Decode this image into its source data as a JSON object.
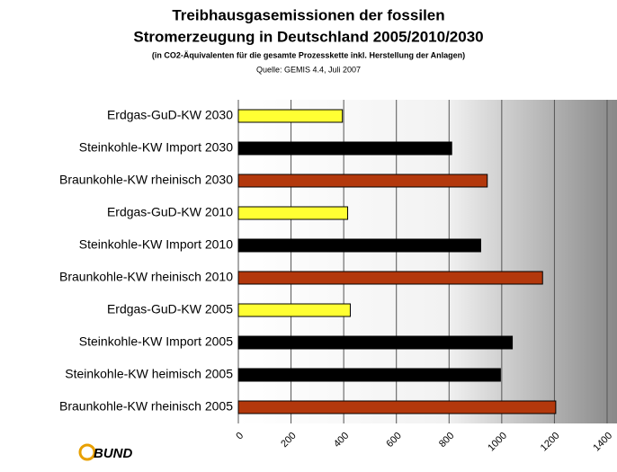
{
  "chart_data": {
    "type": "hbar",
    "title": [
      "Treibhausgasemissionen der fossilen",
      "Stromerzeugung in Deutschland 2005/2010/2030"
    ],
    "subtitle": "(in CO2-Äquivalenten für die gesamte Prozesskette inkl. Herstellung der Anlagen)",
    "source": "Quelle: GEMIS 4.4, Juli 2007",
    "logo": "BUND",
    "categories": [
      "Erdgas-GuD-KW 2030",
      "Steinkohle-KW Import 2030",
      "Braunkohle-KW rheinisch 2030",
      "Erdgas-GuD-KW 2010",
      "Steinkohle-KW Import 2010",
      "Braunkohle-KW rheinisch 2010",
      "Erdgas-GuD-KW 2005",
      "Steinkohle-KW Import 2005",
      "Steinkohle-KW heimisch 2005",
      "Braunkohle-KW rheinisch 2005"
    ],
    "values": [
      395,
      810,
      945,
      415,
      920,
      1155,
      425,
      1040,
      995,
      1205
    ],
    "colors": [
      "#ffff33",
      "#000000",
      "#b3380c",
      "#ffff33",
      "#000000",
      "#b3380c",
      "#ffff33",
      "#000000",
      "#000000",
      "#b3380c"
    ],
    "xlim": [
      0,
      1400
    ],
    "xticks": [
      0,
      200,
      400,
      600,
      800,
      1000,
      1200,
      1400
    ],
    "grid": true
  }
}
